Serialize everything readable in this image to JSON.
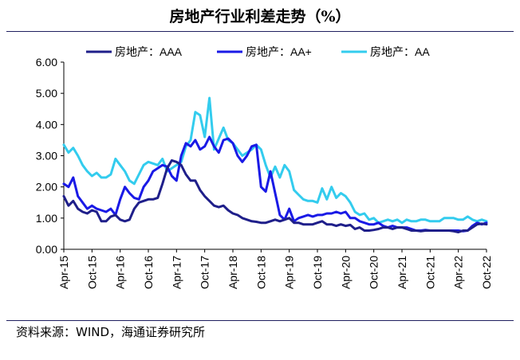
{
  "title": "房地产行业利差走势（%）",
  "source": "资料来源：WIND，海通证券研究所",
  "chart_data": {
    "type": "line",
    "title": "房地产行业利差走势（%）",
    "ylim": [
      0,
      6
    ],
    "yticks": [
      "0.00",
      "1.00",
      "2.00",
      "3.00",
      "4.00",
      "5.00",
      "6.00"
    ],
    "xticks": [
      "Apr-15",
      "Oct-15",
      "Apr-16",
      "Oct-16",
      "Apr-17",
      "Oct-17",
      "Apr-18",
      "Oct-18",
      "Apr-19",
      "Oct-19",
      "Apr-20",
      "Oct-20",
      "Apr-21",
      "Oct-21",
      "Apr-22",
      "Oct-22"
    ],
    "xrange_months": [
      0,
      90
    ],
    "grid": false,
    "legend_position": "top",
    "series": [
      {
        "name": "房地产：AAA",
        "color": "#1f1f8a",
        "x": [
          0,
          1,
          2,
          3,
          4,
          5,
          6,
          7,
          8,
          9,
          10,
          11,
          12,
          13,
          14,
          15,
          16,
          17,
          18,
          19,
          20,
          21,
          22,
          23,
          24,
          25,
          26,
          27,
          28,
          29,
          30,
          31,
          32,
          33,
          34,
          35,
          36,
          37,
          38,
          39,
          40,
          41,
          42,
          43,
          44,
          45,
          46,
          47,
          48,
          49,
          50,
          51,
          52,
          53,
          54,
          55,
          56,
          57,
          58,
          59,
          60,
          61,
          62,
          63,
          64,
          65,
          66,
          67,
          68,
          69,
          70,
          71,
          72,
          73,
          74,
          75,
          76,
          77,
          78,
          79,
          80,
          81,
          82,
          83,
          84,
          85,
          86,
          87,
          88,
          89,
          90
        ],
        "values": [
          1.7,
          1.4,
          1.55,
          1.3,
          1.2,
          1.15,
          1.25,
          1.2,
          0.9,
          0.9,
          1.05,
          1.1,
          0.95,
          0.9,
          0.95,
          1.3,
          1.5,
          1.55,
          1.6,
          1.6,
          1.65,
          2.1,
          2.6,
          2.85,
          2.8,
          2.7,
          2.4,
          2.2,
          2.2,
          1.9,
          1.7,
          1.55,
          1.4,
          1.35,
          1.4,
          1.25,
          1.15,
          1.1,
          1.0,
          0.95,
          0.9,
          0.88,
          0.85,
          0.85,
          0.9,
          0.95,
          0.9,
          0.95,
          1.0,
          0.85,
          0.85,
          0.8,
          0.8,
          0.8,
          0.85,
          0.9,
          0.8,
          0.8,
          0.75,
          0.8,
          0.75,
          0.78,
          0.65,
          0.7,
          0.6,
          0.6,
          0.62,
          0.65,
          0.7,
          0.7,
          0.65,
          0.7,
          0.7,
          0.65,
          0.6,
          0.6,
          0.58,
          0.6,
          0.6,
          0.6,
          0.6,
          0.6,
          0.6,
          0.58,
          0.55,
          0.6,
          0.6,
          0.7,
          0.8,
          0.82,
          0.8
        ]
      },
      {
        "name": "房地产：AA+",
        "color": "#1a1ae6",
        "x": [
          0,
          1,
          2,
          3,
          4,
          5,
          6,
          7,
          8,
          9,
          10,
          11,
          12,
          13,
          14,
          15,
          16,
          17,
          18,
          19,
          20,
          21,
          22,
          23,
          24,
          25,
          26,
          27,
          28,
          29,
          30,
          31,
          32,
          33,
          34,
          35,
          36,
          37,
          38,
          39,
          40,
          41,
          42,
          43,
          44,
          45,
          46,
          47,
          48,
          49,
          50,
          51,
          52,
          53,
          54,
          55,
          56,
          57,
          58,
          59,
          60,
          61,
          62,
          63,
          64,
          65,
          66,
          67,
          68,
          69,
          70,
          71,
          72,
          73,
          74,
          75,
          76,
          77,
          78,
          79,
          80,
          81,
          82,
          83,
          84,
          85,
          86,
          87,
          88,
          89,
          90
        ],
        "values": [
          2.1,
          2.0,
          2.3,
          1.7,
          1.5,
          1.3,
          1.4,
          1.3,
          1.25,
          1.2,
          1.3,
          1.1,
          1.6,
          2.0,
          1.8,
          1.65,
          1.6,
          2.0,
          2.2,
          2.5,
          2.6,
          2.7,
          2.65,
          2.35,
          2.2,
          3.0,
          3.4,
          3.3,
          3.5,
          3.2,
          3.3,
          3.6,
          3.3,
          3.1,
          3.5,
          3.55,
          3.4,
          3.0,
          2.8,
          3.0,
          3.3,
          3.35,
          2.0,
          1.85,
          2.5,
          1.8,
          1.1,
          0.95,
          1.3,
          0.9,
          1.0,
          1.05,
          1.1,
          1.05,
          1.1,
          1.1,
          1.15,
          1.15,
          1.2,
          1.15,
          1.2,
          1.0,
          1.0,
          0.9,
          0.85,
          0.8,
          0.8,
          0.85,
          0.75,
          0.7,
          0.75,
          0.7,
          0.7,
          0.7,
          0.65,
          0.6,
          0.6,
          0.62,
          0.6,
          0.6,
          0.6,
          0.6,
          0.6,
          0.6,
          0.6,
          0.58,
          0.6,
          0.75,
          0.85,
          0.8,
          0.85
        ]
      },
      {
        "name": "房地产：AA",
        "color": "#33ccee",
        "x": [
          0,
          1,
          2,
          3,
          4,
          5,
          6,
          7,
          8,
          9,
          10,
          11,
          12,
          13,
          14,
          15,
          16,
          17,
          18,
          19,
          20,
          21,
          22,
          23,
          24,
          25,
          26,
          27,
          28,
          29,
          30,
          31,
          32,
          33,
          34,
          35,
          36,
          37,
          38,
          39,
          40,
          41,
          42,
          43,
          44,
          45,
          46,
          47,
          48,
          49,
          50,
          51,
          52,
          53,
          54,
          55,
          56,
          57,
          58,
          59,
          60,
          61,
          62,
          63,
          64,
          65,
          66,
          67,
          68,
          69,
          70,
          71,
          72,
          73,
          74,
          75,
          76,
          77,
          78,
          79,
          80,
          81,
          82,
          83,
          84,
          85,
          86,
          87,
          88,
          89,
          90
        ],
        "values": [
          3.35,
          3.1,
          3.25,
          3.0,
          2.7,
          2.5,
          2.35,
          2.45,
          2.3,
          2.3,
          2.4,
          2.9,
          2.7,
          2.5,
          2.2,
          2.1,
          2.4,
          2.7,
          2.8,
          2.75,
          2.7,
          2.9,
          2.5,
          2.6,
          2.7,
          2.8,
          3.3,
          3.5,
          4.4,
          4.3,
          3.6,
          4.85,
          3.2,
          3.55,
          3.9,
          3.5,
          3.4,
          3.2,
          3.0,
          3.1,
          3.2,
          3.35,
          3.2,
          2.7,
          2.3,
          2.65,
          2.3,
          2.7,
          2.5,
          1.9,
          1.75,
          1.6,
          1.55,
          1.55,
          1.5,
          1.95,
          1.6,
          2.0,
          1.65,
          1.8,
          1.7,
          1.5,
          1.2,
          1.1,
          1.15,
          0.95,
          1.0,
          0.85,
          0.9,
          0.95,
          0.9,
          0.95,
          0.85,
          0.95,
          0.9,
          0.9,
          0.95,
          0.95,
          0.9,
          0.9,
          0.9,
          1.0,
          1.0,
          1.0,
          0.95,
          0.95,
          1.05,
          0.95,
          0.9,
          0.95,
          0.9
        ]
      }
    ]
  }
}
